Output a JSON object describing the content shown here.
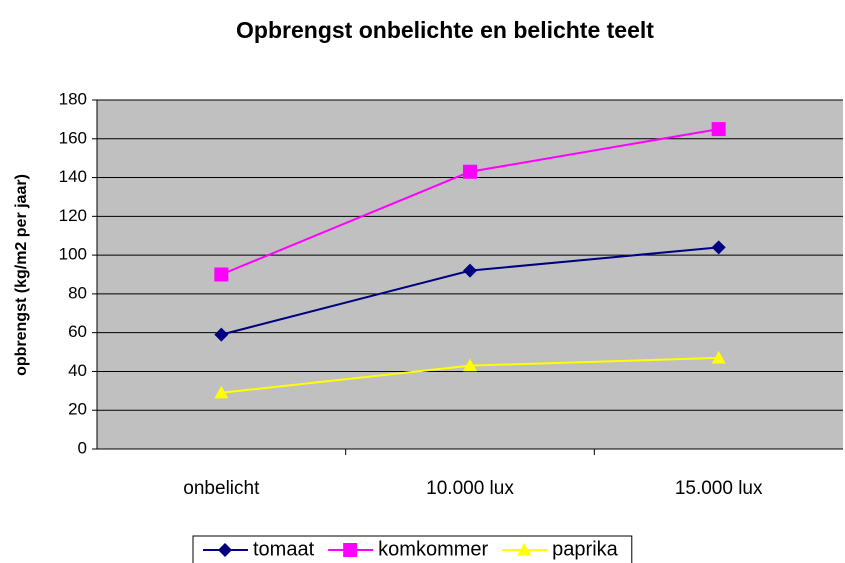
{
  "chart_data": {
    "type": "line",
    "title": "Opbrengst onbelichte en belichte teelt",
    "y_label": "opbrengst (kg/m2 per jaar)",
    "categories": [
      "onbelicht",
      "10.000 lux",
      "15.000 lux"
    ],
    "series": [
      {
        "name": "tomaat",
        "color": "#000080",
        "marker": "diamond",
        "values": [
          59,
          92,
          104
        ]
      },
      {
        "name": "komkommer",
        "color": "#ff00ff",
        "marker": "square",
        "values": [
          90,
          143,
          165
        ]
      },
      {
        "name": "paprika",
        "color": "#ffff00",
        "marker": "triangle",
        "values": [
          29,
          43,
          47
        ]
      }
    ],
    "ylim": [
      0,
      180
    ],
    "yticks": [
      0,
      20,
      40,
      60,
      80,
      100,
      120,
      140,
      160,
      180
    ],
    "grid": true,
    "legend": "bottom"
  }
}
